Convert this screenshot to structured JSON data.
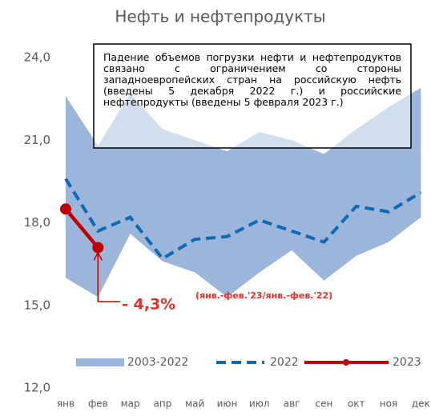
{
  "chart_data": {
    "type": "line",
    "title": "Нефть и нефтепродукты",
    "categories": [
      "янв",
      "фев",
      "мар",
      "апр",
      "май",
      "июн",
      "июл",
      "авг",
      "сен",
      "окт",
      "ноя",
      "дек"
    ],
    "series": [
      {
        "name": "2003-2022",
        "kind": "band",
        "color": "#9bb6da",
        "values": [
          22.6,
          20.8,
          22.7,
          21.4,
          21.0,
          20.6,
          21.3,
          21.0,
          20.5,
          21.4,
          22.2,
          22.9
        ],
        "lower": [
          16.0,
          15.3,
          17.6,
          16.6,
          16.2,
          15.3,
          16.2,
          17.0,
          15.9,
          16.8,
          17.3,
          18.2
        ]
      },
      {
        "name": "2022",
        "kind": "dashed",
        "color": "#0f6ab4",
        "values": [
          19.6,
          17.7,
          18.2,
          16.7,
          17.4,
          17.5,
          18.1,
          17.7,
          17.3,
          18.6,
          18.4,
          19.1
        ]
      },
      {
        "name": "2023",
        "kind": "solid",
        "color": "#c00000",
        "values": [
          18.5,
          17.1,
          null,
          null,
          null,
          null,
          null,
          null,
          null,
          null,
          null,
          null
        ]
      }
    ],
    "ylim": [
      12,
      24
    ],
    "yticks": [
      {
        "value": 12,
        "label": "12,0"
      },
      {
        "value": 15,
        "label": "15,0"
      },
      {
        "value": 18,
        "label": "18,0"
      },
      {
        "value": 21,
        "label": "21,0"
      },
      {
        "value": 24,
        "label": "24,0"
      }
    ],
    "legend": "bottom",
    "annotation": "Падение объемов погрузки нефти и нефтепродуктов связано с ограничением со стороны западноевропейских стран на российскую нефть (введены 5 декабря 2022 г.) и российские нефтепродукты (введены 5 февраля 2023 г.)",
    "change_label": "- 4,3%",
    "change_note": "(янв.-фев.'23/янв.-фев.'22)"
  }
}
